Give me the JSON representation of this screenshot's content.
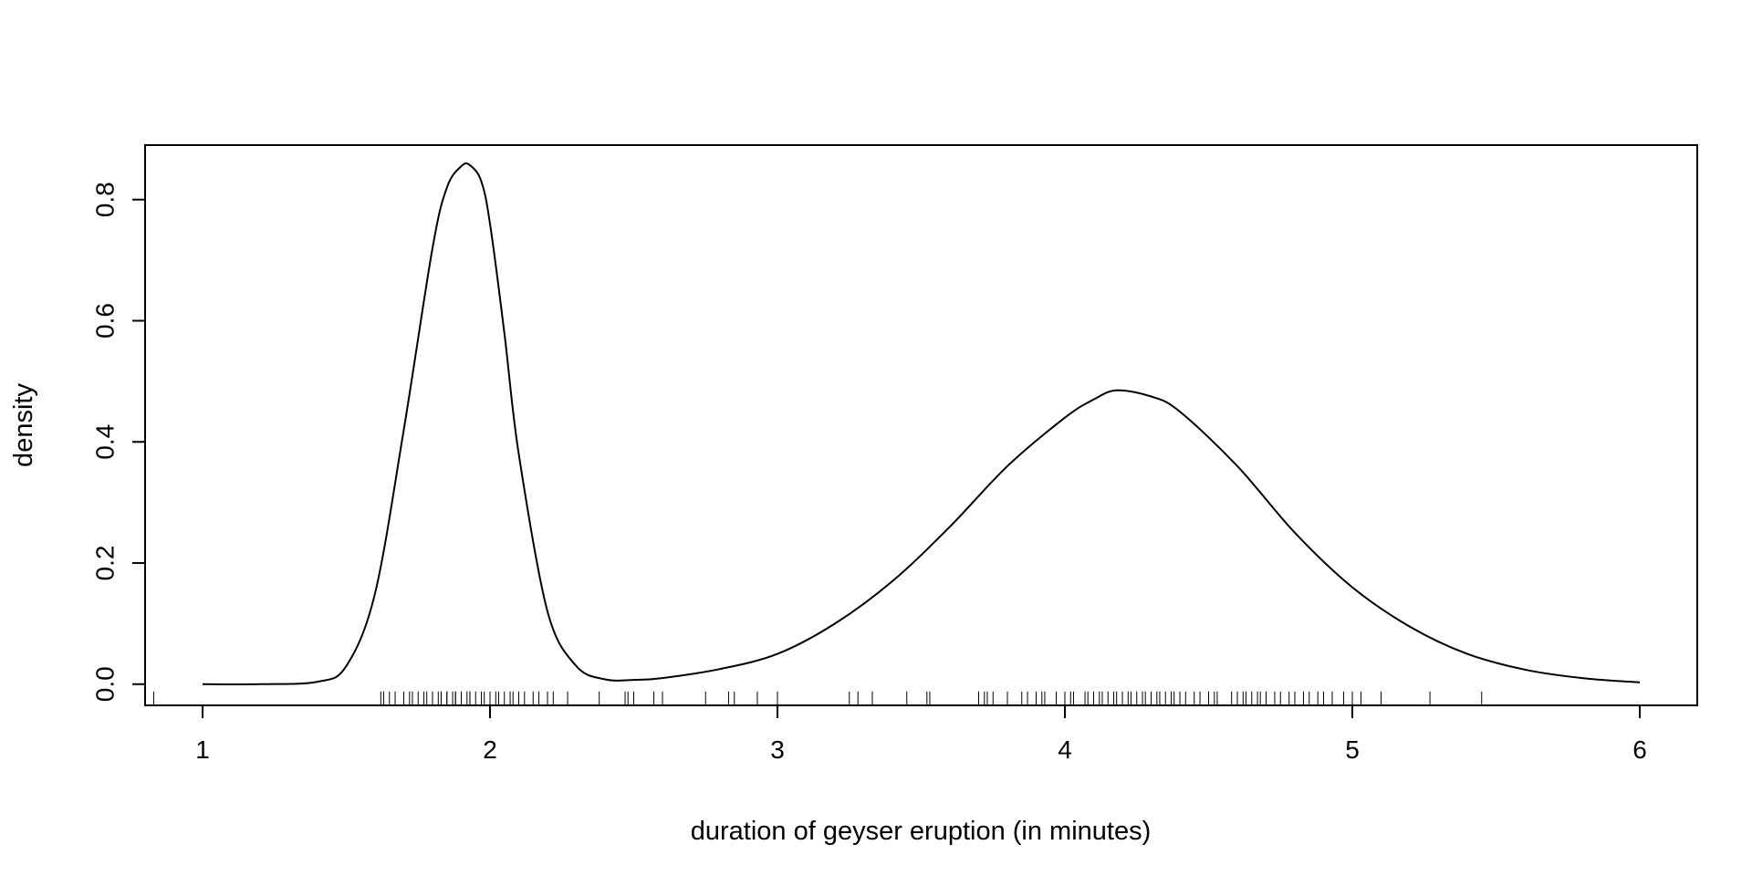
{
  "chart_data": {
    "type": "line",
    "title": "",
    "xlabel": "duration of geyser eruption (in minutes)",
    "ylabel": "density",
    "xlim": [
      0.8,
      6.2
    ],
    "ylim": [
      -0.035,
      0.89
    ],
    "x_ticks": [
      1,
      2,
      3,
      4,
      5,
      6
    ],
    "x_tick_labels": [
      "1",
      "2",
      "3",
      "4",
      "5",
      "6"
    ],
    "y_ticks": [
      0.0,
      0.2,
      0.4,
      0.6,
      0.8
    ],
    "y_tick_labels": [
      "0.0",
      "0.2",
      "0.4",
      "0.6",
      "0.8"
    ],
    "grid": false,
    "legend": "none",
    "series": [
      {
        "x": [
          1.0,
          1.2,
          1.4,
          1.5,
          1.6,
          1.7,
          1.8,
          1.85,
          1.9,
          1.93,
          1.97,
          2.0,
          2.05,
          2.1,
          2.2,
          2.3,
          2.4,
          2.5,
          2.6,
          2.8,
          3.0,
          3.2,
          3.4,
          3.6,
          3.8,
          4.0,
          4.1,
          4.18,
          4.3,
          4.4,
          4.6,
          4.8,
          5.0,
          5.2,
          5.4,
          5.6,
          5.8,
          6.0
        ],
        "y": [
          0.0,
          0.0,
          0.004,
          0.03,
          0.15,
          0.42,
          0.72,
          0.82,
          0.855,
          0.857,
          0.83,
          0.76,
          0.58,
          0.38,
          0.12,
          0.03,
          0.008,
          0.007,
          0.01,
          0.025,
          0.05,
          0.1,
          0.17,
          0.26,
          0.36,
          0.44,
          0.47,
          0.485,
          0.475,
          0.45,
          0.36,
          0.25,
          0.16,
          0.095,
          0.05,
          0.024,
          0.01,
          0.003
        ]
      }
    ],
    "rug": [
      0.83,
      1.62,
      1.63,
      1.65,
      1.67,
      1.7,
      1.72,
      1.73,
      1.75,
      1.77,
      1.78,
      1.8,
      1.82,
      1.83,
      1.83,
      1.85,
      1.85,
      1.87,
      1.88,
      1.88,
      1.9,
      1.9,
      1.92,
      1.93,
      1.93,
      1.95,
      1.97,
      1.98,
      2.0,
      2.02,
      2.03,
      2.05,
      2.07,
      2.08,
      2.1,
      2.12,
      2.15,
      2.17,
      2.2,
      2.22,
      2.27,
      2.38,
      2.47,
      2.48,
      2.5,
      2.57,
      2.6,
      2.75,
      2.83,
      2.85,
      2.93,
      3.0,
      3.25,
      3.28,
      3.33,
      3.45,
      3.52,
      3.53,
      3.7,
      3.72,
      3.73,
      3.75,
      3.8,
      3.85,
      3.87,
      3.9,
      3.92,
      3.93,
      3.97,
      4.0,
      4.02,
      4.03,
      4.07,
      4.08,
      4.1,
      4.12,
      4.13,
      4.15,
      4.17,
      4.18,
      4.2,
      4.22,
      4.23,
      4.25,
      4.27,
      4.28,
      4.3,
      4.32,
      4.33,
      4.35,
      4.37,
      4.38,
      4.4,
      4.42,
      4.45,
      4.47,
      4.5,
      4.52,
      4.53,
      4.58,
      4.6,
      4.62,
      4.63,
      4.65,
      4.67,
      4.68,
      4.7,
      4.73,
      4.75,
      4.78,
      4.8,
      4.83,
      4.85,
      4.88,
      4.9,
      4.93,
      4.97,
      5.0,
      5.03,
      5.1,
      5.27,
      5.45
    ]
  },
  "colors": {
    "line": "#000000",
    "background": "#ffffff"
  }
}
